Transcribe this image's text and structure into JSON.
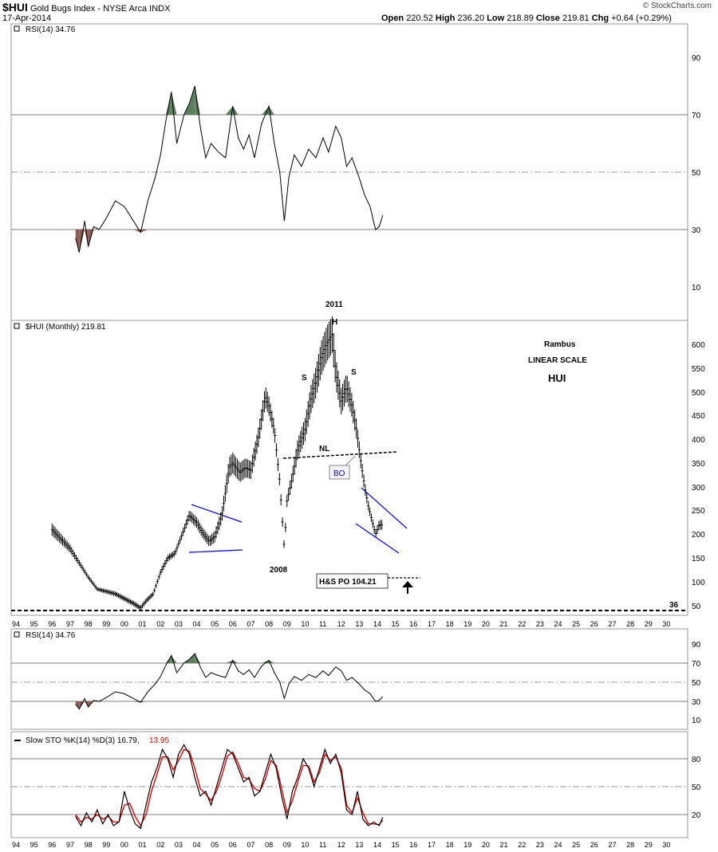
{
  "header": {
    "ticker": "$HUI",
    "name": "Gold Bugs Index - NYSE Arca INDX",
    "date": "17-Apr-2014",
    "ohlc_labels": {
      "open": "Open",
      "high": "High",
      "low": "Low",
      "close": "Close",
      "chg": "Chg"
    },
    "ohlc_values": {
      "open": "220.52",
      "high": "236.20",
      "low": "218.89",
      "close": "219.81",
      "chg": "+0.64 (+0.29%)"
    },
    "credit": "© StockCharts.com"
  },
  "panels": {
    "rsi_top": {
      "label": "RSI(14) 34.76",
      "ticks": [
        "90",
        "70",
        "50",
        "30",
        "10"
      ]
    },
    "price": {
      "label": "$HUI (Monthly) 219.81",
      "ticks": [
        "600",
        "550",
        "500",
        "450",
        "400",
        "350",
        "300",
        "250",
        "200",
        "150",
        "100",
        "50"
      ],
      "annotations": {
        "a2011": "2011",
        "h": "H",
        "s1": "S",
        "s2": "S",
        "nl": "NL",
        "bo": "BO",
        "y2008": "2008",
        "hs_po": "H&S PO 104.21",
        "level36": "36",
        "rambus": "Rambus",
        "scale": "LINEAR SCALE",
        "hui": "HUI"
      }
    },
    "rsi_bottom": {
      "label": "RSI(14) 34.76",
      "ticks": [
        "90",
        "70",
        "50",
        "30",
        "10"
      ]
    },
    "sto": {
      "label_k": "Slow STO %K(14) %D(3) 16.79,",
      "label_d": "13.95",
      "ticks": [
        "80",
        "50",
        "20"
      ]
    }
  },
  "x_axis_labels": [
    "94",
    "95",
    "96",
    "97",
    "98",
    "99",
    "00",
    "01",
    "02",
    "03",
    "04",
    "05",
    "06",
    "07",
    "08",
    "09",
    "10",
    "11",
    "12",
    "13",
    "14",
    "15",
    "16",
    "17",
    "18",
    "19",
    "20",
    "21",
    "22",
    "23",
    "24",
    "25",
    "26",
    "27",
    "28",
    "29",
    "30"
  ],
  "colors": {
    "overbought_fill": "#5e7f5e",
    "oversold_fill": "#8a5e58",
    "pattern_line": "#0000ee",
    "stoD": "#dd0000"
  },
  "chart_data": {
    "type": "line",
    "x_unit": "year",
    "price": {
      "name": "$HUI (Monthly)",
      "x": [
        1996.0,
        1996.5,
        1997.0,
        1997.5,
        1998.0,
        1998.5,
        1999.0,
        1999.5,
        2000.0,
        2000.5,
        2000.9,
        2001.2,
        2001.6,
        2002.0,
        2002.4,
        2002.8,
        2003.2,
        2003.6,
        2004.0,
        2004.3,
        2004.7,
        2005.0,
        2005.4,
        2005.8,
        2006.0,
        2006.4,
        2006.7,
        2007.0,
        2007.4,
        2007.8,
        2008.0,
        2008.3,
        2008.6,
        2008.85,
        2009.0,
        2009.3,
        2009.6,
        2010.0,
        2010.3,
        2010.6,
        2010.9,
        2011.2,
        2011.5,
        2011.7,
        2012.0,
        2012.3,
        2012.6,
        2012.85,
        2013.1,
        2013.3,
        2013.5,
        2013.7,
        2013.9,
        2014.1,
        2014.3
      ],
      "y": [
        210,
        190,
        170,
        140,
        110,
        85,
        80,
        75,
        65,
        55,
        45,
        60,
        75,
        120,
        150,
        160,
        200,
        240,
        225,
        205,
        185,
        195,
        240,
        340,
        350,
        330,
        340,
        335,
        400,
        490,
        470,
        420,
        310,
        170,
        270,
        320,
        380,
        420,
        480,
        520,
        570,
        600,
        620,
        540,
        480,
        510,
        470,
        420,
        350,
        300,
        260,
        230,
        200,
        220,
        220
      ]
    },
    "rsi": {
      "name": "RSI(14)",
      "x": [
        1997.3,
        1997.5,
        1997.8,
        1998.0,
        1998.3,
        1998.6,
        1999.0,
        1999.5,
        2000.0,
        2000.5,
        2000.9,
        2001.3,
        2001.7,
        2002.0,
        2002.3,
        2002.6,
        2002.9,
        2003.3,
        2003.6,
        2003.9,
        2004.2,
        2004.5,
        2004.8,
        2005.2,
        2005.6,
        2006.0,
        2006.3,
        2006.6,
        2006.9,
        2007.2,
        2007.6,
        2008.0,
        2008.3,
        2008.6,
        2008.85,
        2009.1,
        2009.4,
        2009.8,
        2010.2,
        2010.6,
        2011.0,
        2011.3,
        2011.7,
        2012.0,
        2012.3,
        2012.6,
        2013.0,
        2013.3,
        2013.6,
        2013.9,
        2014.1,
        2014.3
      ],
      "y": [
        27,
        22,
        33,
        24,
        31,
        30,
        34,
        40,
        38,
        33,
        29,
        40,
        48,
        56,
        68,
        78,
        60,
        70,
        74,
        80,
        66,
        55,
        60,
        57,
        55,
        73,
        62,
        58,
        63,
        55,
        67,
        73,
        60,
        50,
        33,
        48,
        56,
        52,
        58,
        55,
        62,
        57,
        66,
        62,
        52,
        55,
        48,
        42,
        38,
        30,
        31,
        35
      ]
    },
    "stochastic": {
      "series": [
        {
          "name": "%K",
          "x": [
            1997.3,
            1997.6,
            1997.9,
            1998.2,
            1998.5,
            1998.8,
            1999.1,
            1999.4,
            1999.7,
            2000.0,
            2000.3,
            2000.6,
            2000.9,
            2001.2,
            2001.5,
            2001.8,
            2002.1,
            2002.4,
            2002.7,
            2003.0,
            2003.3,
            2003.6,
            2003.9,
            2004.2,
            2004.5,
            2004.8,
            2005.1,
            2005.4,
            2005.7,
            2006.0,
            2006.3,
            2006.6,
            2006.9,
            2007.2,
            2007.5,
            2007.8,
            2008.1,
            2008.4,
            2008.7,
            2009.0,
            2009.3,
            2009.6,
            2009.9,
            2010.2,
            2010.5,
            2010.8,
            2011.1,
            2011.4,
            2011.7,
            2012.0,
            2012.3,
            2012.6,
            2012.9,
            2013.2,
            2013.5,
            2013.8,
            2014.1,
            2014.3
          ],
          "y": [
            18,
            8,
            22,
            12,
            25,
            10,
            20,
            8,
            12,
            45,
            25,
            10,
            5,
            30,
            55,
            70,
            90,
            80,
            60,
            85,
            95,
            85,
            60,
            40,
            45,
            30,
            50,
            70,
            90,
            85,
            70,
            55,
            60,
            40,
            45,
            65,
            85,
            70,
            40,
            15,
            45,
            60,
            80,
            70,
            50,
            70,
            90,
            75,
            85,
            65,
            25,
            20,
            45,
            15,
            8,
            12,
            8,
            17
          ]
        },
        {
          "name": "%D",
          "x": [
            1997.3,
            1997.6,
            1997.9,
            1998.2,
            1998.5,
            1998.8,
            1999.1,
            1999.4,
            1999.7,
            2000.0,
            2000.3,
            2000.6,
            2000.9,
            2001.2,
            2001.5,
            2001.8,
            2002.1,
            2002.4,
            2002.7,
            2003.0,
            2003.3,
            2003.6,
            2003.9,
            2004.2,
            2004.5,
            2004.8,
            2005.1,
            2005.4,
            2005.7,
            2006.0,
            2006.3,
            2006.6,
            2006.9,
            2007.2,
            2007.5,
            2007.8,
            2008.1,
            2008.4,
            2008.7,
            2009.0,
            2009.3,
            2009.6,
            2009.9,
            2010.2,
            2010.5,
            2010.8,
            2011.1,
            2011.4,
            2011.7,
            2012.0,
            2012.3,
            2012.6,
            2012.9,
            2013.2,
            2013.5,
            2013.8,
            2014.1,
            2014.3
          ],
          "y": [
            20,
            12,
            17,
            15,
            20,
            15,
            18,
            12,
            12,
            30,
            32,
            18,
            8,
            20,
            45,
            63,
            82,
            82,
            68,
            78,
            90,
            88,
            70,
            48,
            42,
            35,
            45,
            62,
            83,
            87,
            75,
            60,
            58,
            48,
            45,
            58,
            78,
            73,
            48,
            22,
            35,
            55,
            73,
            72,
            55,
            65,
            85,
            78,
            82,
            70,
            30,
            22,
            38,
            22,
            10,
            10,
            9,
            14
          ]
        }
      ]
    }
  }
}
